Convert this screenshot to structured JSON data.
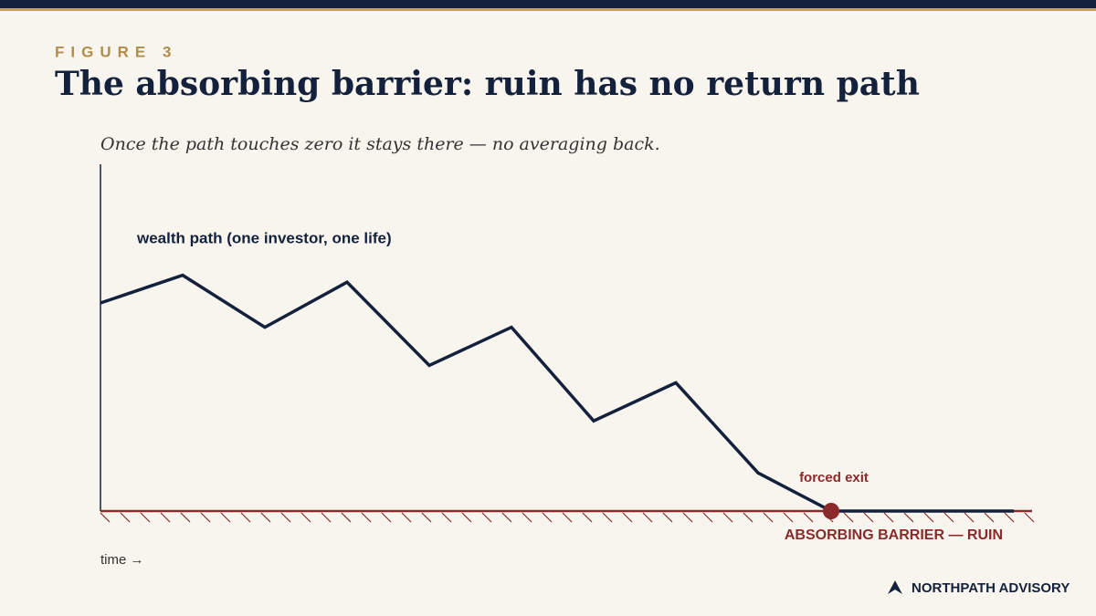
{
  "chart_data": {
    "type": "line",
    "figure_label": "FIGURE 3",
    "title": "The absorbing barrier: ruin has no return path",
    "subtitle": "Once the path touches zero it stays there — no averaging back.",
    "x_label": "time →",
    "x": [
      0,
      9,
      18,
      27,
      36,
      45,
      54,
      63,
      72,
      80,
      100
    ],
    "series": [
      {
        "name": "wealth path (one investor, one life)",
        "color": "#13213c",
        "values": [
          60,
          68,
          53,
          66,
          42,
          53,
          26,
          37,
          11,
          0,
          0
        ]
      }
    ],
    "xlim": [
      0,
      100
    ],
    "ylim": [
      0,
      100
    ],
    "barrier": {
      "label": "ABSORBING BARRIER — RUIN",
      "value": 0,
      "color": "#8b2a2a"
    },
    "annotations": [
      {
        "text": "forced exit",
        "x": 80,
        "y": 0
      }
    ]
  },
  "footer": {
    "brand": "NORTHPATH ADVISORY"
  }
}
